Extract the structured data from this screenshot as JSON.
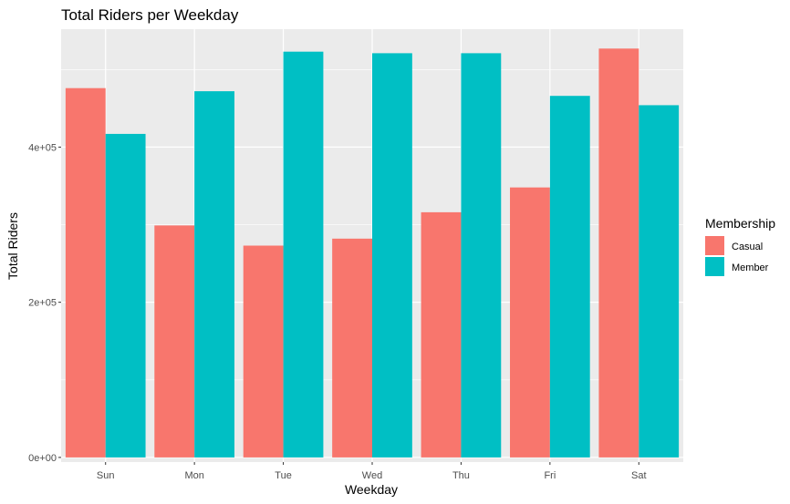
{
  "chart_data": {
    "type": "bar",
    "title": "Total Riders per Weekday",
    "xlabel": "Weekday",
    "ylabel": "Total Riders",
    "categories": [
      "Sun",
      "Mon",
      "Tue",
      "Wed",
      "Thu",
      "Fri",
      "Sat"
    ],
    "series": [
      {
        "name": "Casual",
        "color": "#F8766D",
        "values": [
          476000,
          299000,
          273000,
          282000,
          316000,
          348000,
          527000
        ]
      },
      {
        "name": "Member",
        "color": "#00BFC4",
        "values": [
          417000,
          472000,
          523000,
          521000,
          521000,
          466000,
          454000
        ]
      }
    ],
    "ylim": [
      -6000,
      552000
    ],
    "yticks": [
      {
        "value": 0,
        "label": "0e+00"
      },
      {
        "value": 200000,
        "label": "2e+05"
      },
      {
        "value": 400000,
        "label": "4e+05"
      }
    ],
    "grid": true,
    "legend": {
      "title": "Membership",
      "position": "right"
    },
    "panel_color": "#EBEBEB",
    "grid_color": "#FFFFFF"
  }
}
